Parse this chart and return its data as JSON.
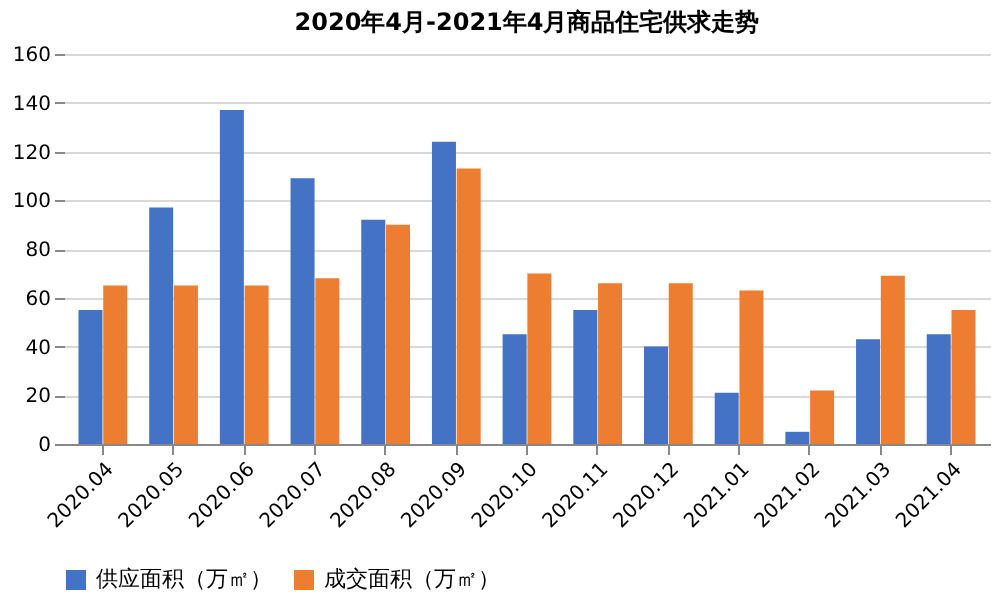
{
  "chart_data": {
    "type": "bar",
    "title": "2020年4月-2021年4月商品住宅供求走势",
    "categories": [
      "2020.04",
      "2020.05",
      "2020.06",
      "2020.07",
      "2020.08",
      "2020.09",
      "2020.10",
      "2020.11",
      "2020.12",
      "2021.01",
      "2021.02",
      "2021.03",
      "2021.04"
    ],
    "series": [
      {
        "name": "供应面积（万㎡）",
        "color": "#4472c4",
        "values": [
          55,
          97,
          137,
          109,
          92,
          124,
          45,
          55,
          40,
          21,
          5,
          43,
          45
        ]
      },
      {
        "name": "成交面积（万㎡）",
        "color": "#ed7d31",
        "values": [
          65,
          65,
          65,
          68,
          90,
          113,
          70,
          66,
          66,
          63,
          22,
          69,
          55
        ]
      }
    ],
    "ylim": [
      0,
      160
    ],
    "yticks": [
      0,
      20,
      40,
      60,
      80,
      100,
      120,
      140,
      160
    ],
    "grid": "y",
    "legend": "bottom"
  }
}
